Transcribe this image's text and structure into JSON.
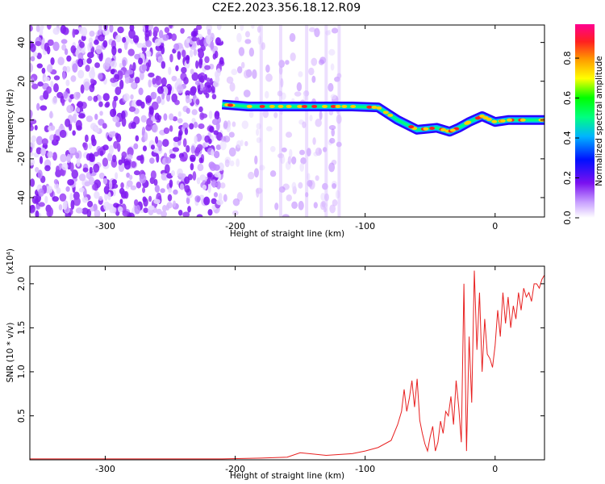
{
  "title": "C2E2.2023.356.18.12.R09",
  "chart_data": [
    {
      "type": "heatmap",
      "xlabel": "Height of straight line (km)",
      "ylabel": "Frequency (Hz)",
      "xlim": [
        -358,
        38
      ],
      "ylim": [
        -50,
        49
      ],
      "xticks": [
        -300,
        -200,
        -100,
        0
      ],
      "yticks": [
        -40,
        -20,
        0,
        20,
        40
      ],
      "colorbar": {
        "label": "Normalized spectral amplitude",
        "range": [
          0.0,
          0.97
        ],
        "ticks": [
          0.0,
          0.2,
          0.4,
          0.6,
          0.8
        ],
        "colormap": [
          "#ffffff",
          "#c8a0ff",
          "#7a10f0",
          "#0010ff",
          "#00b4ff",
          "#00ff80",
          "#00ff00",
          "#ffff00",
          "#ff9900",
          "#ff2020",
          "#ff0090"
        ]
      },
      "signal_ridge": {
        "x": [
          -210,
          -190,
          -170,
          -150,
          -130,
          -110,
          -90,
          -75,
          -60,
          -45,
          -35,
          -28,
          -20,
          -10,
          0,
          10,
          20,
          38
        ],
        "y": [
          8,
          7,
          7,
          7,
          7,
          7,
          6.5,
          0,
          -5,
          -4,
          -6,
          -4,
          -1,
          2,
          -1,
          0,
          0,
          0
        ]
      },
      "noise_regions": [
        {
          "x_range": [
            -358,
            -210
          ],
          "level": "dense"
        },
        {
          "x_range": [
            -210,
            -120
          ],
          "level": "sparse"
        }
      ]
    },
    {
      "type": "line",
      "xlabel": "Height of straight line (km)",
      "ylabel": "SNR (10 * v/v)",
      "y_multiplier": "(x10⁴)",
      "xlim": [
        -358,
        38
      ],
      "ylim": [
        0,
        2.2
      ],
      "xticks": [
        -300,
        -200,
        -100,
        0
      ],
      "yticks": [
        0.5,
        1.0,
        1.5,
        2.0
      ],
      "series": [
        {
          "color": "#e82020",
          "x": [
            -358,
            -300,
            -250,
            -210,
            -180,
            -160,
            -150,
            -130,
            -110,
            -100,
            -90,
            -80,
            -75,
            -72,
            -70,
            -68,
            -66,
            -64,
            -62,
            -60,
            -58,
            -56,
            -54,
            -52,
            -50,
            -48,
            -46,
            -44,
            -42,
            -40,
            -38,
            -36,
            -34,
            -32,
            -30,
            -28,
            -26,
            -24,
            -22,
            -20,
            -18,
            -16,
            -14,
            -12,
            -10,
            -8,
            -6,
            -4,
            -2,
            0,
            2,
            4,
            6,
            8,
            10,
            12,
            14,
            16,
            18,
            20,
            22,
            24,
            26,
            28,
            30,
            32,
            34,
            36,
            38
          ],
          "y": [
            0.01,
            0.01,
            0.01,
            0.01,
            0.02,
            0.03,
            0.08,
            0.05,
            0.07,
            0.1,
            0.14,
            0.22,
            0.4,
            0.55,
            0.8,
            0.55,
            0.7,
            0.9,
            0.6,
            0.92,
            0.45,
            0.3,
            0.18,
            0.1,
            0.26,
            0.38,
            0.1,
            0.2,
            0.44,
            0.3,
            0.55,
            0.5,
            0.72,
            0.4,
            0.9,
            0.6,
            0.2,
            2.0,
            0.1,
            1.4,
            0.65,
            2.15,
            1.25,
            1.9,
            1.0,
            1.6,
            1.2,
            1.15,
            1.05,
            1.3,
            1.7,
            1.4,
            1.9,
            1.55,
            1.85,
            1.5,
            1.75,
            1.6,
            1.9,
            1.7,
            1.95,
            1.85,
            1.9,
            1.8,
            2.0,
            2.0,
            1.95,
            2.05,
            2.1
          ]
        }
      ]
    }
  ]
}
